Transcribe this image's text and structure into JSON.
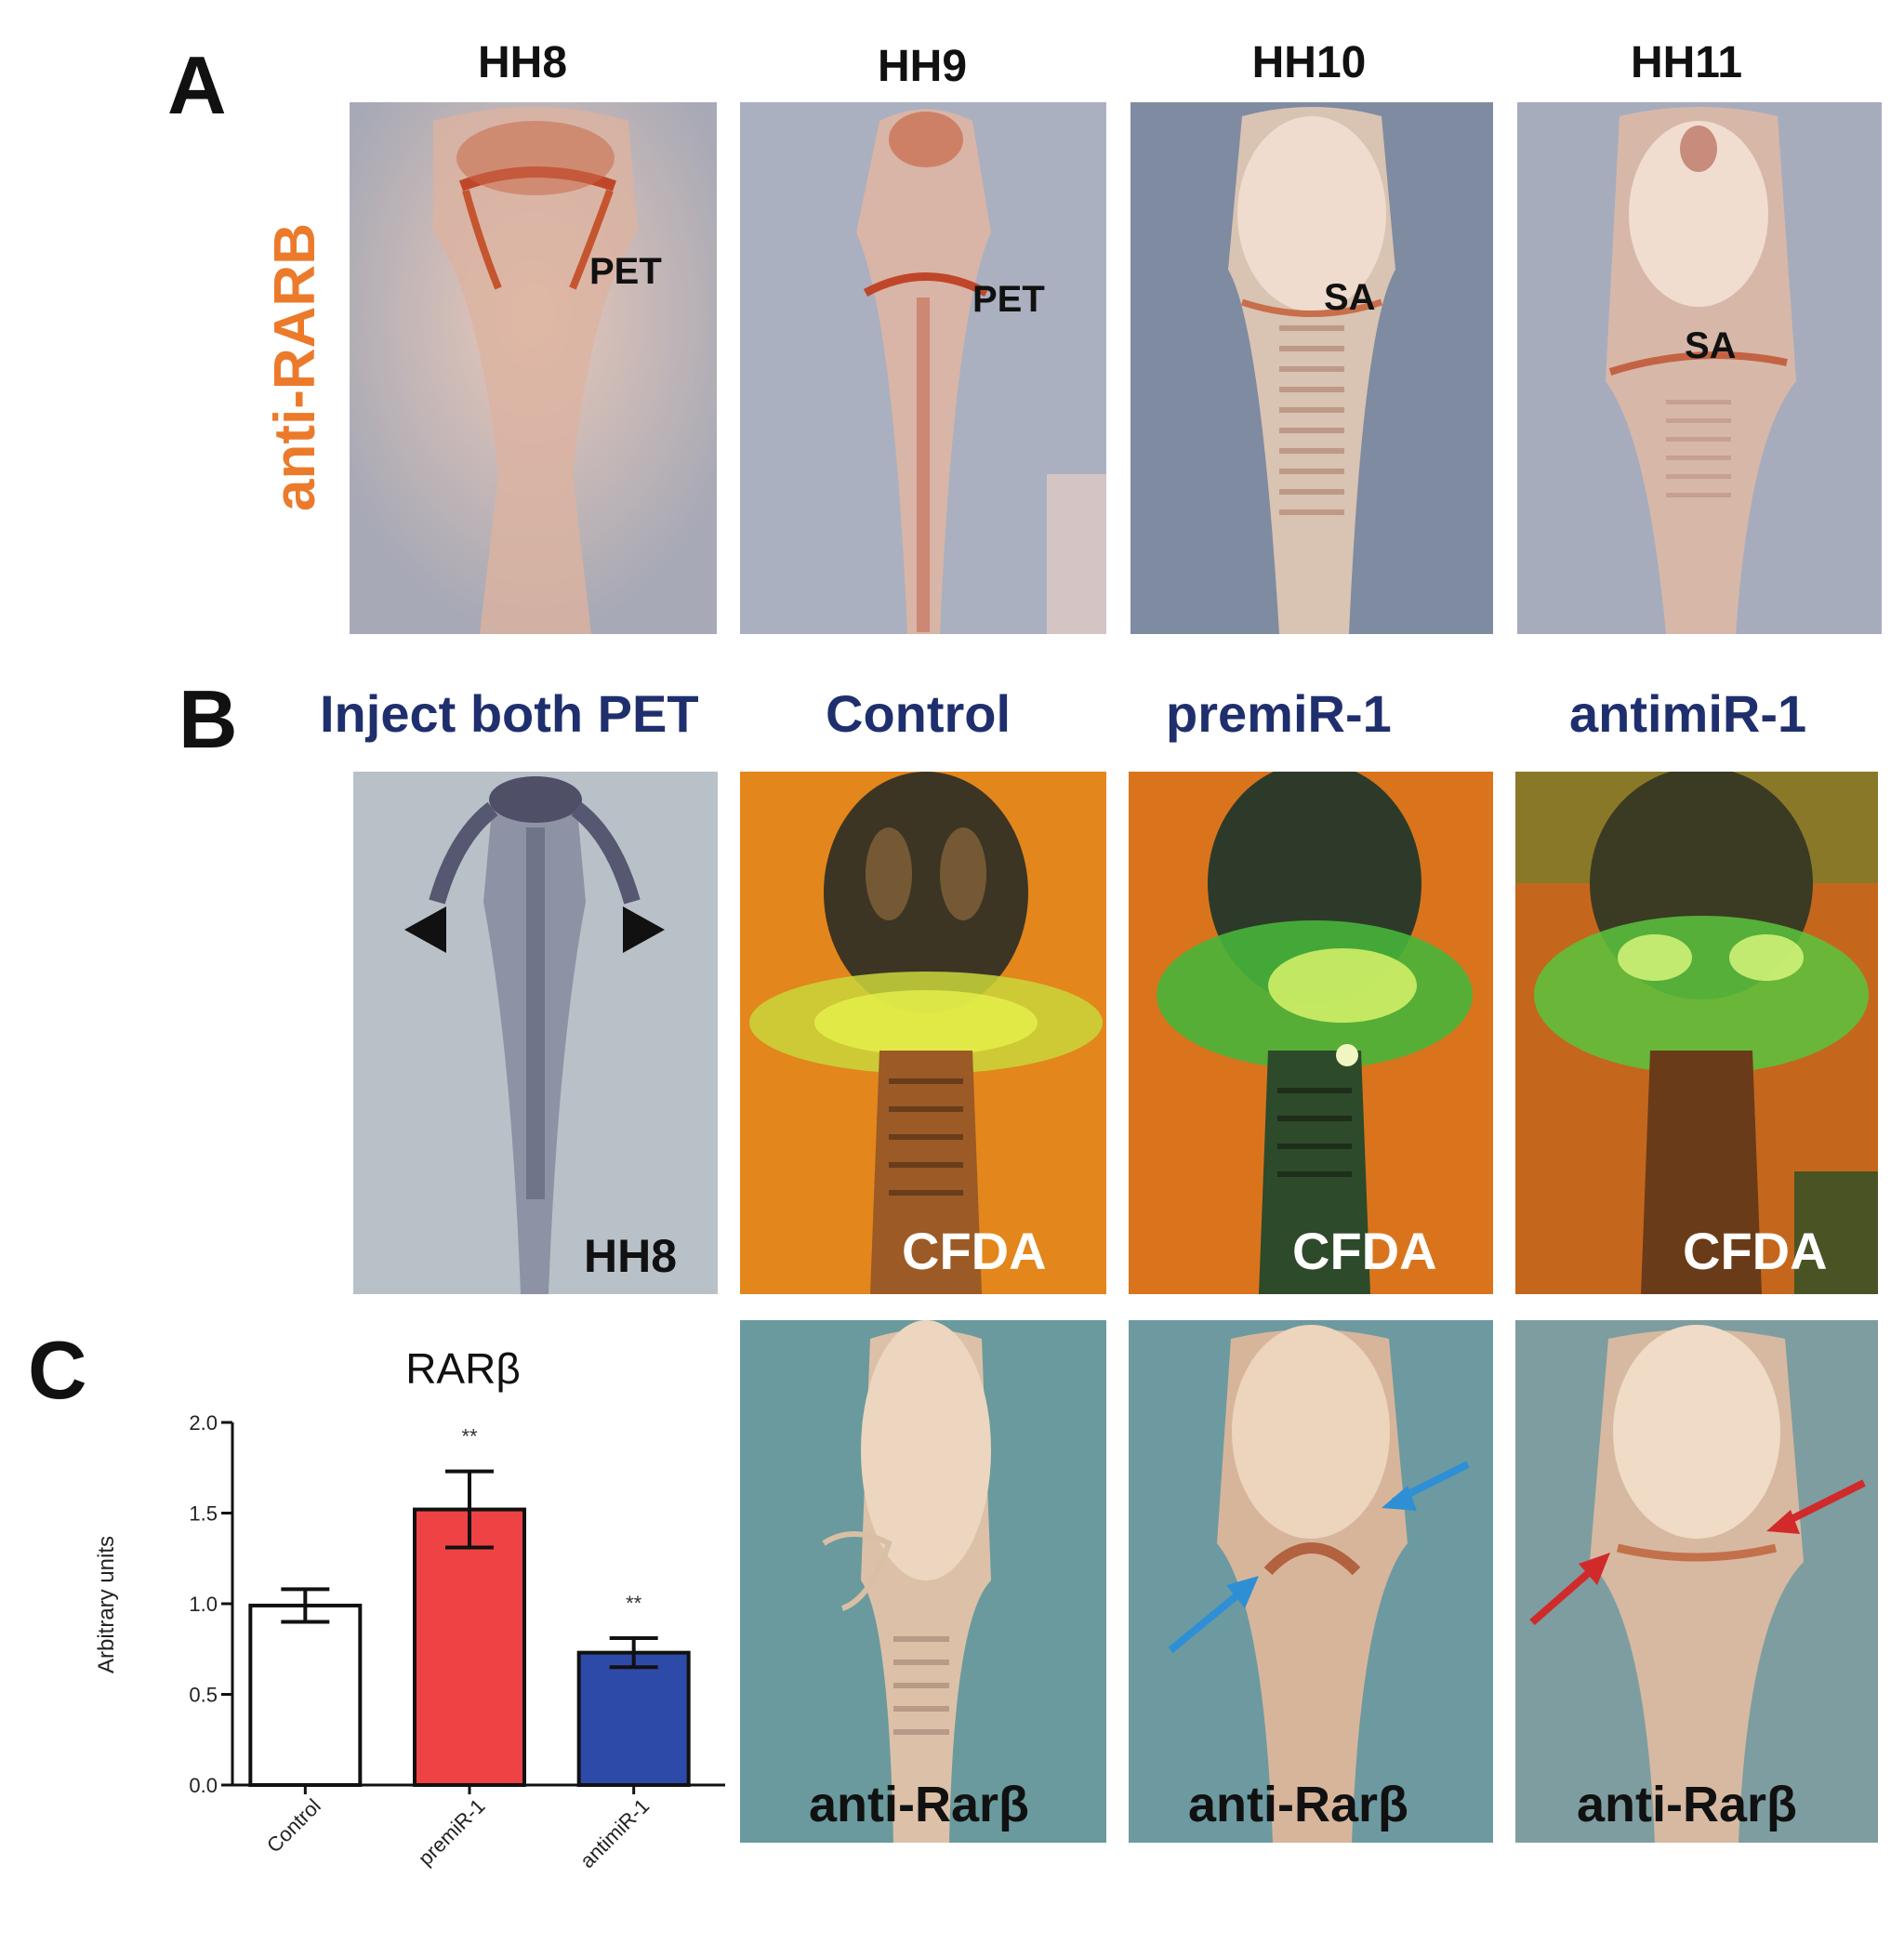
{
  "panel_a": {
    "letter": "A",
    "row_label": "anti-RARB",
    "stages": [
      "HH8",
      "HH9",
      "HH10",
      "HH11"
    ],
    "inner_labels": [
      "PET",
      "PET",
      "SA",
      "SA"
    ]
  },
  "panel_b": {
    "letter": "B",
    "conditions": [
      "Inject both PET",
      "Control",
      "premiR-1",
      "antimiR-1"
    ],
    "row1_labels": [
      "HH8",
      "CFDA",
      "CFDA",
      "CFDA"
    ],
    "row2_labels": [
      "anti-Rarβ",
      "anti-Rarβ",
      "anti-Rarβ"
    ]
  },
  "panel_c": {
    "letter": "C",
    "chart_data": {
      "type": "bar",
      "title": "RARβ",
      "ylabel": "Arbitrary units",
      "xlabel": "",
      "categories": [
        "Control",
        "premiR-1",
        "antimiR-1"
      ],
      "values": [
        0.99,
        1.52,
        0.73
      ],
      "errors": [
        0.09,
        0.21,
        0.08
      ],
      "significance": [
        "",
        "**",
        "**"
      ],
      "colors": [
        "#ffffff",
        "#ee4244",
        "#2e4aa8"
      ],
      "ylim": [
        0.0,
        2.0
      ],
      "yticks": [
        "0.0",
        "0.5",
        "1.0",
        "1.5",
        "2.0"
      ],
      "grid": false
    }
  }
}
